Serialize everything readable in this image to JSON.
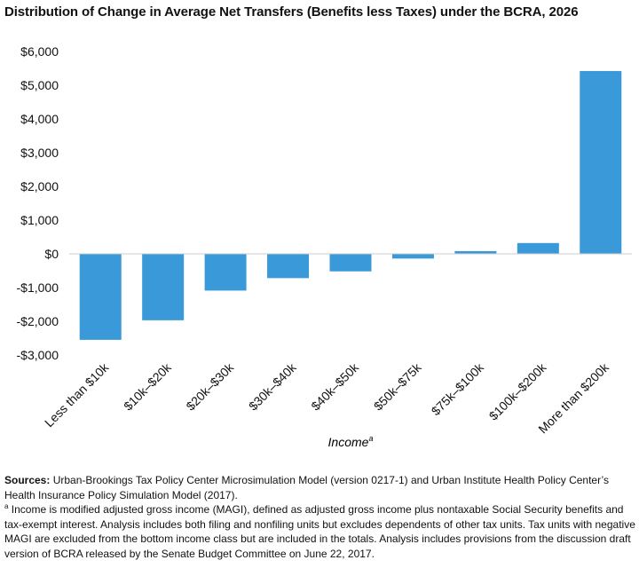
{
  "title": "Distribution of Change in Average Net Transfers (Benefits less Taxes) under the BCRA, 2026",
  "chart_data": {
    "type": "bar",
    "title": "Distribution of Change in Average Net Transfers (Benefits less Taxes) under the BCRA, 2026",
    "xlabel": "Income",
    "xlabel_superscript": "a",
    "ylabel": "",
    "ylim": [
      -3000,
      6000
    ],
    "yticks": [
      6000,
      5000,
      4000,
      3000,
      2000,
      1000,
      0,
      -1000,
      -2000,
      -3000
    ],
    "ytick_labels": [
      "$6,000",
      "$5,000",
      "$4,000",
      "$3,000",
      "$2,000",
      "$1,000",
      "$0",
      "-$1,000",
      "-$2,000",
      "-$3,000"
    ],
    "categories": [
      "Less than $10k",
      "$10k–$20k",
      "$20k–$30k",
      "$30k–$40k",
      "$40k–$50k",
      "$50k–$75k",
      "$75k–$100k",
      "$100k–$200k",
      "More than $200k"
    ],
    "values": [
      -2550,
      -1970,
      -1090,
      -720,
      -520,
      -140,
      80,
      320,
      5420
    ],
    "bar_color": "#3a9ad9",
    "grid": false,
    "legend": "none"
  },
  "notes": {
    "sources_label": "Sources:",
    "sources_text": " Urban-Brookings Tax Policy Center Microsimulation Model (version 0217-1) and Urban Institute Health Policy Center’s Health Insurance Policy Simulation Model (2017).",
    "footnote_mark": "a",
    "footnote_text": " Income is modified adjusted gross income (MAGI), defined as adjusted gross income plus nontaxable Social Security benefits and tax-exempt interest. Analysis includes both filing and nonfiling units but excludes dependents of other tax units. Tax units with negative MAGI are excluded from the bottom income class but are included in the totals. Analysis includes provisions from the discussion draft version of BCRA released by the Senate Budget Committee on June 22, 2017."
  }
}
